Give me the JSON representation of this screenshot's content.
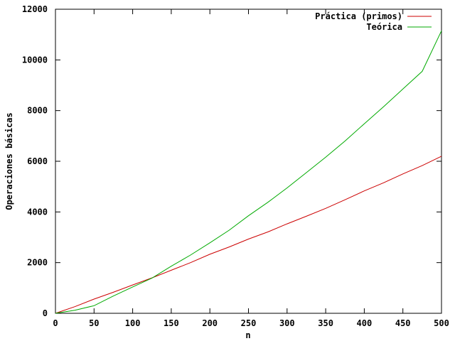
{
  "chart_data": {
    "type": "line",
    "title": "",
    "xlabel": "n",
    "ylabel": "Operaciones básicas",
    "xlim": [
      0,
      500
    ],
    "ylim": [
      0,
      12000
    ],
    "x_ticks": [
      0,
      50,
      100,
      150,
      200,
      250,
      300,
      350,
      400,
      450,
      500
    ],
    "y_ticks": [
      0,
      2000,
      4000,
      6000,
      8000,
      10000,
      12000
    ],
    "grid": false,
    "legend_position": "top-right",
    "series": [
      {
        "name": "Práctica (primos)",
        "color": "#cc0000",
        "x": [
          0,
          25,
          50,
          75,
          100,
          125,
          150,
          175,
          200,
          225,
          250,
          275,
          300,
          325,
          350,
          375,
          400,
          425,
          450,
          475,
          500
        ],
        "y": [
          0,
          260,
          560,
          830,
          1120,
          1400,
          1700,
          2000,
          2330,
          2620,
          2930,
          3210,
          3530,
          3830,
          4140,
          4480,
          4830,
          5150,
          5500,
          5830,
          6200
        ]
      },
      {
        "name": "Teórica",
        "color": "#00aa00",
        "x": [
          0,
          25,
          50,
          75,
          100,
          125,
          150,
          175,
          200,
          225,
          250,
          275,
          300,
          325,
          350,
          375,
          400,
          425,
          450,
          475,
          500
        ],
        "y": [
          0,
          120,
          300,
          680,
          1040,
          1390,
          1860,
          2300,
          2780,
          3280,
          3850,
          4380,
          4950,
          5550,
          6160,
          6800,
          7480,
          8150,
          8850,
          9550,
          11150
        ]
      }
    ]
  }
}
